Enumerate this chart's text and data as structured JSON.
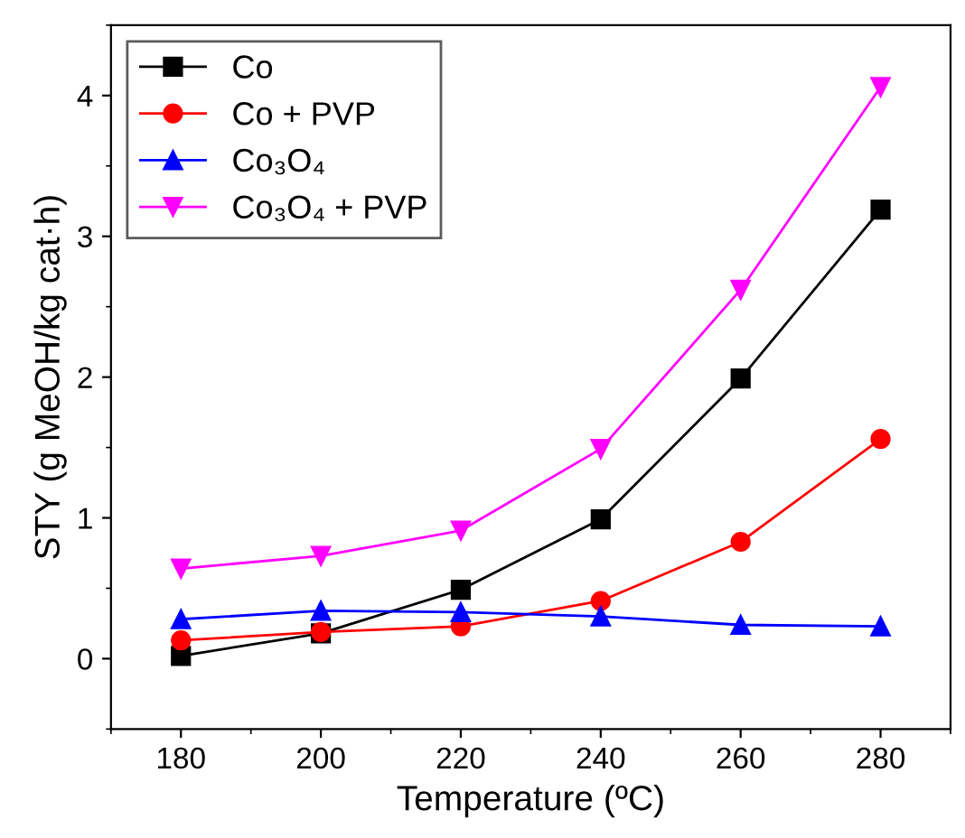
{
  "chart_data": {
    "type": "line",
    "xlabel": "Temperature (ºC)",
    "ylabel": "STY (g MeOH/kg cat·h)",
    "x": [
      180,
      200,
      220,
      240,
      260,
      280
    ],
    "series": [
      {
        "name": "Co",
        "color": "#000000",
        "marker": "square",
        "values": [
          0.02,
          0.18,
          0.49,
          0.99,
          1.99,
          3.19
        ]
      },
      {
        "name": "Co + PVP",
        "color": "#ff0000",
        "marker": "circle",
        "values": [
          0.13,
          0.19,
          0.23,
          0.41,
          0.83,
          1.56
        ]
      },
      {
        "name": "Co₃O₄",
        "color": "#0000ff",
        "marker": "triangle",
        "values": [
          0.28,
          0.34,
          0.33,
          0.3,
          0.24,
          0.23
        ]
      },
      {
        "name": "Co₃O₄ + PVP",
        "color": "#ff00ff",
        "marker": "triangle_down",
        "values": [
          0.64,
          0.73,
          0.91,
          1.49,
          2.62,
          4.06
        ]
      }
    ],
    "xlim": [
      170,
      290
    ],
    "xticks": [
      180,
      200,
      220,
      240,
      260,
      280
    ],
    "ylim": [
      -0.5,
      4.5
    ],
    "yticks": [
      0,
      1,
      2,
      3,
      4
    ],
    "grid": false,
    "legend": "top left",
    "line_style": "solid"
  }
}
